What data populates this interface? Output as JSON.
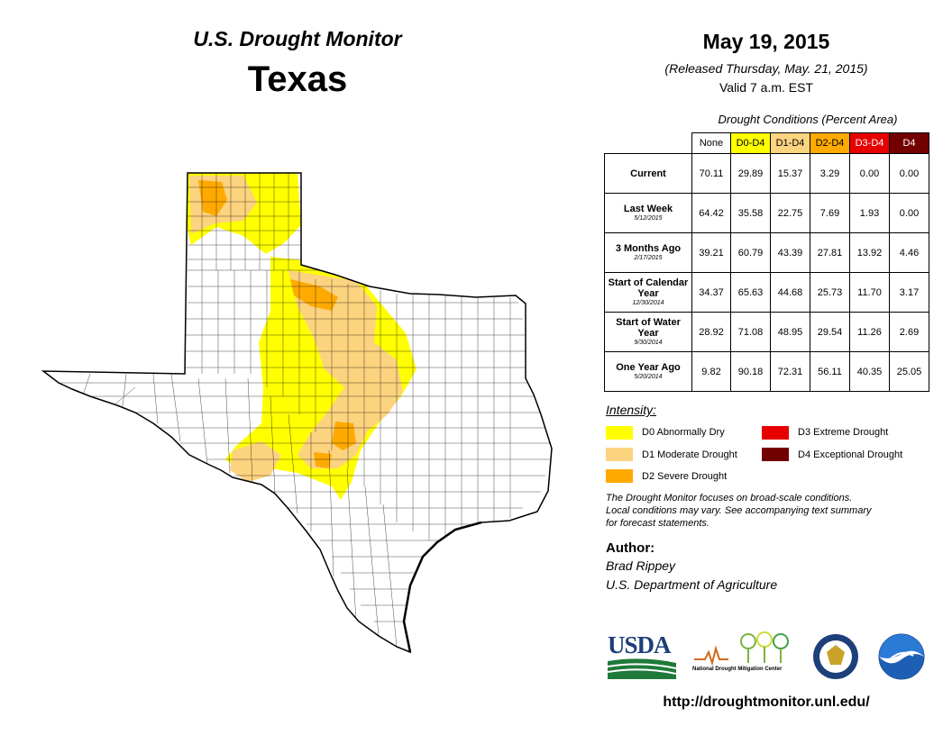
{
  "header": {
    "title": "U.S. Drought Monitor",
    "state": "Texas",
    "date": "May 19, 2015",
    "released": "(Released Thursday, May. 21, 2015)",
    "valid": "Valid 7 a.m. EST"
  },
  "table": {
    "caption": "Drought Conditions (Percent Area)",
    "columns": [
      "None",
      "D0-D4",
      "D1-D4",
      "D2-D4",
      "D3-D4",
      "D4"
    ],
    "rows": [
      {
        "label": "Current",
        "date": "",
        "values": [
          "70.11",
          "29.89",
          "15.37",
          "3.29",
          "0.00",
          "0.00"
        ]
      },
      {
        "label": "Last Week",
        "date": "5/12/2015",
        "values": [
          "64.42",
          "35.58",
          "22.75",
          "7.69",
          "1.93",
          "0.00"
        ]
      },
      {
        "label": "3 Months Ago",
        "date": "2/17/2015",
        "values": [
          "39.21",
          "60.79",
          "43.39",
          "27.81",
          "13.92",
          "4.46"
        ]
      },
      {
        "label": "Start of Calendar Year",
        "date": "12/30/2014",
        "values": [
          "34.37",
          "65.63",
          "44.68",
          "25.73",
          "11.70",
          "3.17"
        ]
      },
      {
        "label": "Start of Water Year",
        "date": "9/30/2014",
        "values": [
          "28.92",
          "71.08",
          "48.95",
          "29.54",
          "11.26",
          "2.69"
        ]
      },
      {
        "label": "One Year Ago",
        "date": "5/20/2014",
        "values": [
          "9.82",
          "90.18",
          "72.31",
          "56.11",
          "40.35",
          "25.05"
        ]
      }
    ]
  },
  "legend": {
    "title": "Intensity:",
    "items": [
      {
        "label": "D0 Abnormally Dry",
        "color": "#ffff00"
      },
      {
        "label": "D1 Moderate Drought",
        "color": "#fcd37f"
      },
      {
        "label": "D2 Severe Drought",
        "color": "#ffaa00"
      },
      {
        "label": "D3 Extreme Drought",
        "color": "#e60000"
      },
      {
        "label": "D4 Exceptional Drought",
        "color": "#730000"
      }
    ]
  },
  "note": {
    "line1": "The Drought Monitor focuses on broad-scale conditions.",
    "line2": "Local conditions may vary. See accompanying text summary",
    "line3": "for forecast statements."
  },
  "author": {
    "heading": "Author:",
    "name": "Brad Rippey",
    "org": "U.S. Department of Agriculture"
  },
  "logos": {
    "usda": "USDA",
    "ndmc": "National Drought Mitigation Center",
    "doc": "doc-seal-icon",
    "noaa": "noaa-logo-icon"
  },
  "footer": {
    "url": "http://droughtmonitor.unl.edu/"
  },
  "map": {
    "region": "Texas",
    "colors": {
      "d0": "#ffff00",
      "d1": "#fcd37f",
      "d2": "#ffaa00",
      "county_line": "#000000"
    }
  }
}
